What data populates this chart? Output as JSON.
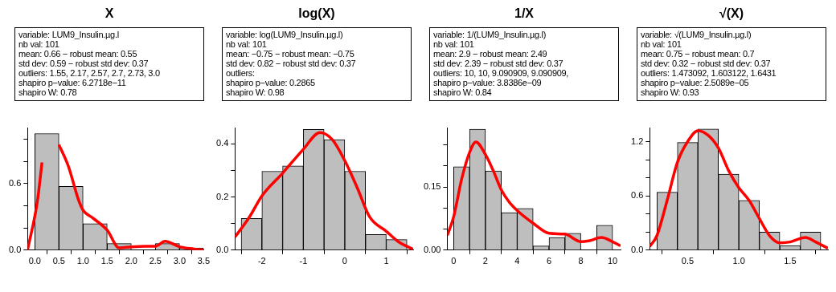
{
  "chart_data": [
    {
      "type": "histogram",
      "title": "X",
      "annotations": [
        "variable: LUM9_Insulin.µg.l",
        "nb val: 101",
        "mean: 0.66 − robust mean: 0.55",
        "std dev: 0.59 − robust std dev: 0.37",
        "outliers: 1.55, 2.17, 2.57, 2.7, 2.73, 3.0",
        "shapiro p−value: 6.2718e−11",
        "shapiro W: 0.78"
      ],
      "bins": [
        0,
        0.5,
        1,
        1.5,
        2,
        2.5,
        3,
        3.5
      ],
      "values": [
        1.05,
        0.574,
        0.238,
        0.059,
        0,
        0.059,
        0.02
      ],
      "color": "#bebebe",
      "series": [
        {
          "type": "line",
          "color": "#ff0000",
          "x": [
            -0.15,
            0.05,
            0.15,
            0.22,
            0.38,
            0.5,
            0.7,
            0.9,
            1.0,
            1.2,
            1.5,
            1.75,
            2.0,
            2.3,
            2.5,
            2.7,
            3.0,
            3.3,
            3.5
          ],
          "values": [
            0,
            0.43,
            0.79,
            null,
            null,
            0.95,
            0.75,
            0.46,
            0.36,
            0.29,
            0.18,
            0.02,
            0.03,
            0.035,
            0.035,
            0.08,
            0.03,
            0.01,
            0
          ]
        }
      ],
      "xlim": [
        -0.15,
        3.5
      ],
      "xticks": [
        {
          "value": 0,
          "label": "0.0"
        },
        0.5,
        {
          "value": 1,
          "label": "1.0"
        },
        1.5,
        {
          "value": 2,
          "label": "2.0"
        },
        2.5,
        {
          "value": 3,
          "label": "3.0"
        },
        3.5
      ],
      "ylim": [
        0,
        1.1
      ],
      "yticks": [
        {
          "value": 0,
          "label": "0.0"
        },
        {
          "value": 0.2,
          "label": null
        },
        {
          "value": 0.4,
          "label": null
        },
        {
          "value": 0.6,
          "label": "0.6"
        },
        {
          "value": 0.8,
          "label": null
        },
        {
          "value": 1,
          "label": null
        }
      ],
      "grid": false
    },
    {
      "type": "histogram",
      "title": "log(X)",
      "annotations": [
        "variable: log(LUM9_Insulin.µg.l)",
        "nb val: 101",
        "mean: −0.75 − robust mean: −0.75",
        "std dev: 0.82 − robust std dev: 0.37",
        "outliers:",
        "shapiro p−value: 0.2865",
        "shapiro W: 0.98"
      ],
      "bins": [
        -2.5,
        -2,
        -1.5,
        -1,
        -0.5,
        0,
        0.5,
        1,
        1.5
      ],
      "values": [
        0.119,
        0.297,
        0.317,
        0.455,
        0.416,
        0.297,
        0.059,
        0.04
      ],
      "color": "#bebebe",
      "series": [
        {
          "type": "line",
          "color": "#ff0000",
          "x": [
            -2.65,
            -2.3,
            -2.0,
            -1.5,
            -1.0,
            -0.6,
            -0.3,
            0,
            0.3,
            0.6,
            1.0,
            1.3,
            1.65
          ],
          "values": [
            0.049,
            0.125,
            0.204,
            0.29,
            0.38,
            0.443,
            0.416,
            0.337,
            0.235,
            0.125,
            0.071,
            0.031,
            0.003
          ]
        }
      ],
      "xlim": [
        -2.65,
        1.65
      ],
      "xticks": [
        -2,
        -1,
        0,
        1
      ],
      "ylim": [
        0,
        0.46
      ],
      "yticks": [
        {
          "value": 0,
          "label": "0.0"
        },
        {
          "value": 0.1,
          "label": null
        },
        {
          "value": 0.2,
          "label": "0.2"
        },
        {
          "value": 0.3,
          "label": null
        },
        {
          "value": 0.4,
          "label": "0.4"
        }
      ],
      "grid": false
    },
    {
      "type": "histogram",
      "title": "1/X",
      "annotations": [
        "variable: 1/(LUM9_Insulin.µg.l)",
        "nb val: 101",
        "mean: 2.9 − robust mean: 2.49",
        "std dev: 2.39 − robust std dev: 0.37",
        "outliers: 10, 10, 9.090909, 9.090909,",
        "shapiro p−value: 3.8386e−09",
        "shapiro W: 0.84"
      ],
      "bins": [
        0,
        1,
        2,
        3,
        4,
        5,
        6,
        7,
        8,
        9,
        10
      ],
      "values": [
        0.198,
        0.287,
        0.188,
        0.089,
        0.099,
        0.01,
        0.03,
        0.04,
        0,
        0.059
      ],
      "color": "#bebebe",
      "series": [
        {
          "type": "line",
          "color": "#ff0000",
          "x": [
            -0.4,
            0,
            0.5,
            1.0,
            1.4,
            2.0,
            2.5,
            3.0,
            3.5,
            4.0,
            5.0,
            6.0,
            7.0,
            8.0,
            8.5,
            9.3,
            10.0,
            10.5
          ],
          "values": [
            0.035,
            0.079,
            0.168,
            0.232,
            0.257,
            0.227,
            0.188,
            0.143,
            0.114,
            0.094,
            0.064,
            0.04,
            0.038,
            0.02,
            0.022,
            0.03,
            0.02,
            0.01
          ]
        }
      ],
      "xlim": [
        -0.4,
        10.5
      ],
      "xticks": [
        0,
        2,
        4,
        6,
        8,
        10
      ],
      "ylim": [
        0,
        0.29
      ],
      "yticks": [
        {
          "value": 0,
          "label": "0.00"
        },
        {
          "value": 0.05,
          "label": null
        },
        {
          "value": 0.1,
          "label": null
        },
        {
          "value": 0.15,
          "label": "0.15"
        },
        {
          "value": 0.2,
          "label": null
        },
        {
          "value": 0.25,
          "label": null
        }
      ],
      "grid": false
    },
    {
      "type": "histogram",
      "title": "√(X)",
      "annotations": [
        "variable: √(LUM9_Insulin.µg.l)",
        "nb val: 101",
        "mean: 0.75 − robust mean: 0.7",
        "std dev: 0.32 − robust std dev: 0.37",
        "outliers: 1.473092, 1.603122, 1.6431",
        "shapiro p−value: 2.5089e−05",
        "shapiro W: 0.93"
      ],
      "bins": [
        0.2,
        0.4,
        0.6,
        0.8,
        1.0,
        1.2,
        1.4,
        1.6,
        1.8
      ],
      "values": [
        0.64,
        1.19,
        1.34,
        0.84,
        0.55,
        0.2,
        0.05,
        0.2
      ],
      "color": "#bebebe",
      "series": [
        {
          "type": "line",
          "color": "#ff0000",
          "x": [
            0.13,
            0.2,
            0.3,
            0.4,
            0.5,
            0.6,
            0.7,
            0.8,
            0.9,
            1.0,
            1.1,
            1.2,
            1.3,
            1.4,
            1.5,
            1.65,
            1.75,
            1.87
          ],
          "values": [
            0.04,
            0.16,
            0.55,
            0.97,
            1.2,
            1.32,
            1.27,
            1.13,
            0.88,
            0.69,
            0.55,
            0.35,
            0.16,
            0.08,
            0.09,
            0.14,
            0.09,
            0.02
          ]
        }
      ],
      "xlim": [
        0.13,
        1.87
      ],
      "xticks": [
        0.5,
        {
          "value": 1,
          "label": "1.0"
        },
        1.5
      ],
      "ylim": [
        0,
        1.35
      ],
      "yticks": [
        {
          "value": 0,
          "label": "0.0"
        },
        {
          "value": 0.2,
          "label": null
        },
        {
          "value": 0.4,
          "label": null
        },
        {
          "value": 0.6,
          "label": "0.6"
        },
        {
          "value": 0.8,
          "label": null
        },
        {
          "value": 1.0,
          "label": null
        },
        {
          "value": 1.2,
          "label": "1.2"
        }
      ],
      "grid": false
    }
  ]
}
